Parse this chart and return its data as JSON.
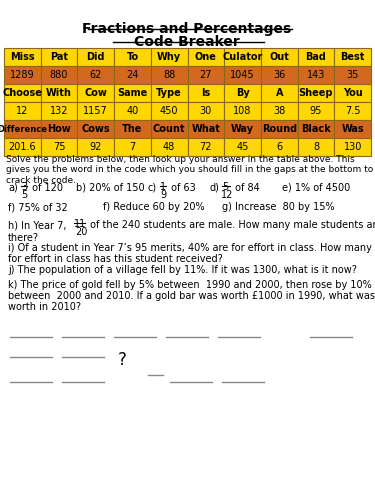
{
  "title_line1": "Fractions and Percentages",
  "title_line2": "Code Breaker",
  "table_headers": [
    "Miss",
    "Pat",
    "Did",
    "To",
    "Why",
    "One",
    "Culator",
    "Out",
    "Bad",
    "Best"
  ],
  "table_row1": [
    "1289",
    "880",
    "62",
    "24",
    "88",
    "27",
    "1045",
    "36",
    "143",
    "35"
  ],
  "table_row2": [
    "Choose",
    "With",
    "Cow",
    "Same",
    "Type",
    "Is",
    "By",
    "A",
    "Sheep",
    "You"
  ],
  "table_row3": [
    "12",
    "132",
    "1157",
    "40",
    "450",
    "30",
    "108",
    "38",
    "95",
    "7.5"
  ],
  "table_row4": [
    "Difference",
    "How",
    "Cows",
    "The",
    "Count",
    "What",
    "Way",
    "Round",
    "Black",
    "Was"
  ],
  "table_row5": [
    "201.6",
    "75",
    "92",
    "7",
    "48",
    "72",
    "45",
    "6",
    "8",
    "130"
  ],
  "header_bg": "#FFD700",
  "orange_bg": "#D2691E",
  "yellow_bg": "#FFD700",
  "instructions": "Solve the problems below, then look up your answer in the table above. This gives you the word in the code which you should fill in the gaps at the bottom to crack the code.",
  "bg_color": "#FFFFFF"
}
